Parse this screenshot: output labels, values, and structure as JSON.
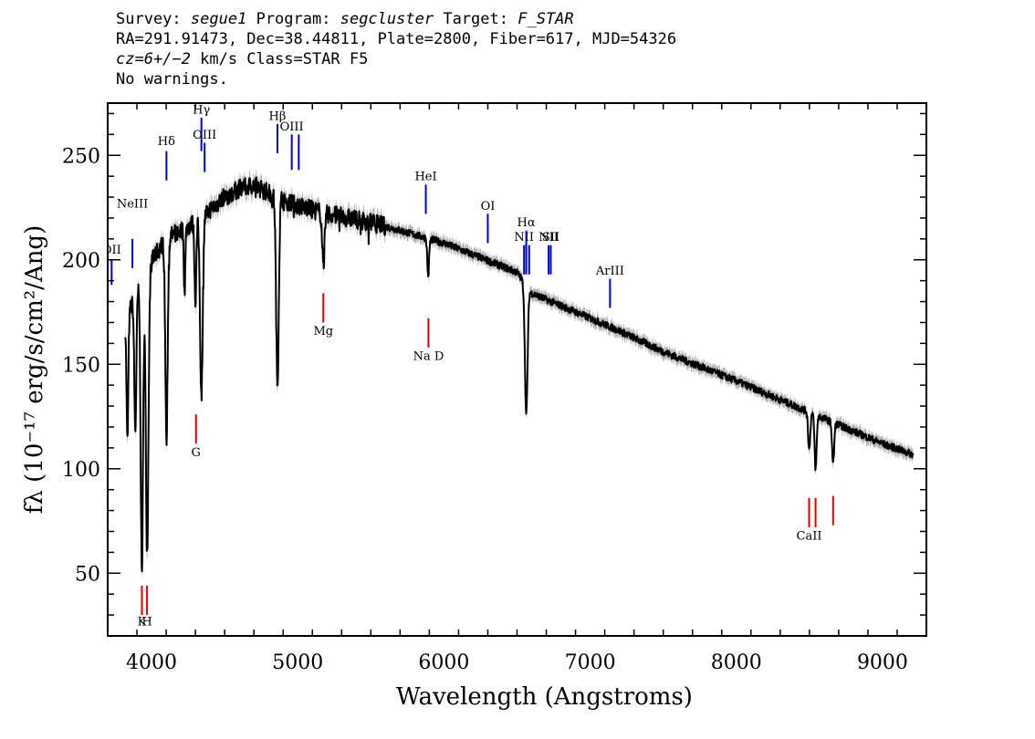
{
  "header": {
    "survey_label": "Survey:",
    "survey_value": "segue1",
    "program_label": "Program:",
    "program_value": "segcluster",
    "target_label": "Target:",
    "target_value": "F_STAR",
    "line2": "RA=291.91473, Dec=38.44811, Plate=2800, Fiber=617, MJD=54326",
    "line3_cz": "cz=6+/−2",
    "line3_rest": " km/s Class=STAR F5",
    "line4": "No warnings."
  },
  "chart_data": {
    "type": "line",
    "xlabel": "Wavelength (Angstroms)",
    "ylabel": "fλ (10⁻¹⁷ erg/s/cm²/Ang)",
    "xlim": [
      3700,
      9300
    ],
    "ylim": [
      20,
      275
    ],
    "x_ticks": [
      4000,
      5000,
      6000,
      7000,
      8000,
      9000
    ],
    "y_ticks": [
      50,
      100,
      150,
      200,
      250
    ],
    "colors": {
      "spectrum": "#000000",
      "error_band": "#b3b3b3",
      "emission_lines": "#0000cc",
      "absorption_lines": "#dd0000"
    },
    "continuum": [
      [
        3820,
        170
      ],
      [
        3900,
        185
      ],
      [
        4000,
        200
      ],
      [
        4100,
        210
      ],
      [
        4200,
        214
      ],
      [
        4300,
        218
      ],
      [
        4400,
        224
      ],
      [
        4500,
        230
      ],
      [
        4600,
        234
      ],
      [
        4700,
        236
      ],
      [
        4800,
        232
      ],
      [
        4900,
        229
      ],
      [
        5000,
        226
      ],
      [
        5200,
        222
      ],
      [
        5500,
        218
      ],
      [
        6000,
        208
      ],
      [
        6500,
        194
      ],
      [
        6600,
        184
      ],
      [
        6800,
        178
      ],
      [
        7000,
        172
      ],
      [
        7200,
        166
      ],
      [
        7500,
        156
      ],
      [
        8000,
        142
      ],
      [
        8500,
        127
      ],
      [
        8800,
        118
      ],
      [
        9000,
        112
      ],
      [
        9200,
        107
      ]
    ],
    "absorption_features": [
      {
        "center": 3835,
        "depth": 60,
        "width": 6
      },
      {
        "center": 3889,
        "depth": 65,
        "width": 7
      },
      {
        "center": 3934,
        "depth": 140,
        "width": 8
      },
      {
        "center": 3970,
        "depth": 135,
        "width": 9
      },
      {
        "center": 4102,
        "depth": 95,
        "width": 8
      },
      {
        "center": 4226,
        "depth": 30,
        "width": 5
      },
      {
        "center": 4300,
        "depth": 38,
        "width": 6
      },
      {
        "center": 4341,
        "depth": 85,
        "width": 9
      },
      {
        "center": 4861,
        "depth": 90,
        "width": 9
      },
      {
        "center": 5175,
        "depth": 25,
        "width": 8
      },
      {
        "center": 5892,
        "depth": 18,
        "width": 6
      },
      {
        "center": 6563,
        "depth": 62,
        "width": 9
      },
      {
        "center": 8498,
        "depth": 18,
        "width": 7
      },
      {
        "center": 8542,
        "depth": 26,
        "width": 7
      },
      {
        "center": 8662,
        "depth": 20,
        "width": 7
      }
    ],
    "emission_lines": [
      {
        "label": "OII",
        "wave": 3727,
        "y_top": 200,
        "y_bottom": 188,
        "label_y": 203
      },
      {
        "label": "NeIII",
        "wave": 3869,
        "y_top": 210,
        "y_bottom": 196,
        "label_y": 225
      },
      {
        "label": "Hδ",
        "wave": 4102,
        "y_top": 252,
        "y_bottom": 238,
        "label_y": 255
      },
      {
        "label": "Hγ",
        "wave": 4341,
        "y_top": 268,
        "y_bottom": 252,
        "label_y": 270
      },
      {
        "label": "OIII",
        "wave": 4363,
        "y_top": 256,
        "y_bottom": 242,
        "label_y": 258
      },
      {
        "label": "Hβ",
        "wave": 4861,
        "y_top": 265,
        "y_bottom": 251,
        "label_y": 267
      },
      {
        "label": "OIII",
        "wave": 4959,
        "y_top": 260,
        "y_bottom": 243,
        "label_y": 262
      },
      {
        "label": "",
        "wave": 5007,
        "y_top": 260,
        "y_bottom": 243,
        "label_y": 262
      },
      {
        "label": "HeI",
        "wave": 5876,
        "y_top": 236,
        "y_bottom": 222,
        "label_y": 238
      },
      {
        "label": "OI",
        "wave": 6300,
        "y_top": 222,
        "y_bottom": 208,
        "label_y": 224
      },
      {
        "label": "NII",
        "wave": 6548,
        "y_top": 207,
        "y_bottom": 193,
        "label_y": 209
      },
      {
        "label": "Hα",
        "wave": 6563,
        "y_top": 214,
        "y_bottom": 193,
        "label_y": 216
      },
      {
        "label": "",
        "wave": 6583,
        "y_top": 207,
        "y_bottom": 193,
        "label_y": 209
      },
      {
        "label": "NII",
        "wave": 6716,
        "y_top": 207,
        "y_bottom": 193,
        "label_y": 209
      },
      {
        "label": "SII",
        "wave": 6731,
        "y_top": 207,
        "y_bottom": 193,
        "label_y": 209
      },
      {
        "label": "ArIII",
        "wave": 7136,
        "y_top": 191,
        "y_bottom": 177,
        "label_y": 193
      }
    ],
    "absorption_lines": [
      {
        "label": "K",
        "wave": 3934,
        "y_top": 44,
        "y_bottom": 30,
        "label_y": 25
      },
      {
        "label": "H",
        "wave": 3969,
        "y_top": 44,
        "y_bottom": 30,
        "label_y": 25
      },
      {
        "label": "G",
        "wave": 4304,
        "y_top": 126,
        "y_bottom": 112,
        "label_y": 106
      },
      {
        "label": "Mg",
        "wave": 5175,
        "y_top": 184,
        "y_bottom": 170,
        "label_y": 164
      },
      {
        "label": "Na D",
        "wave": 5894,
        "y_top": 172,
        "y_bottom": 158,
        "label_y": 152
      },
      {
        "label": "CaII",
        "wave": 8498,
        "y_top": 86,
        "y_bottom": 72,
        "label_y": 66
      },
      {
        "label": "",
        "wave": 8542,
        "y_top": 86,
        "y_bottom": 72,
        "label_y": 66
      },
      {
        "label": "",
        "wave": 8662,
        "y_top": 87,
        "y_bottom": 73,
        "label_y": 66
      }
    ]
  }
}
